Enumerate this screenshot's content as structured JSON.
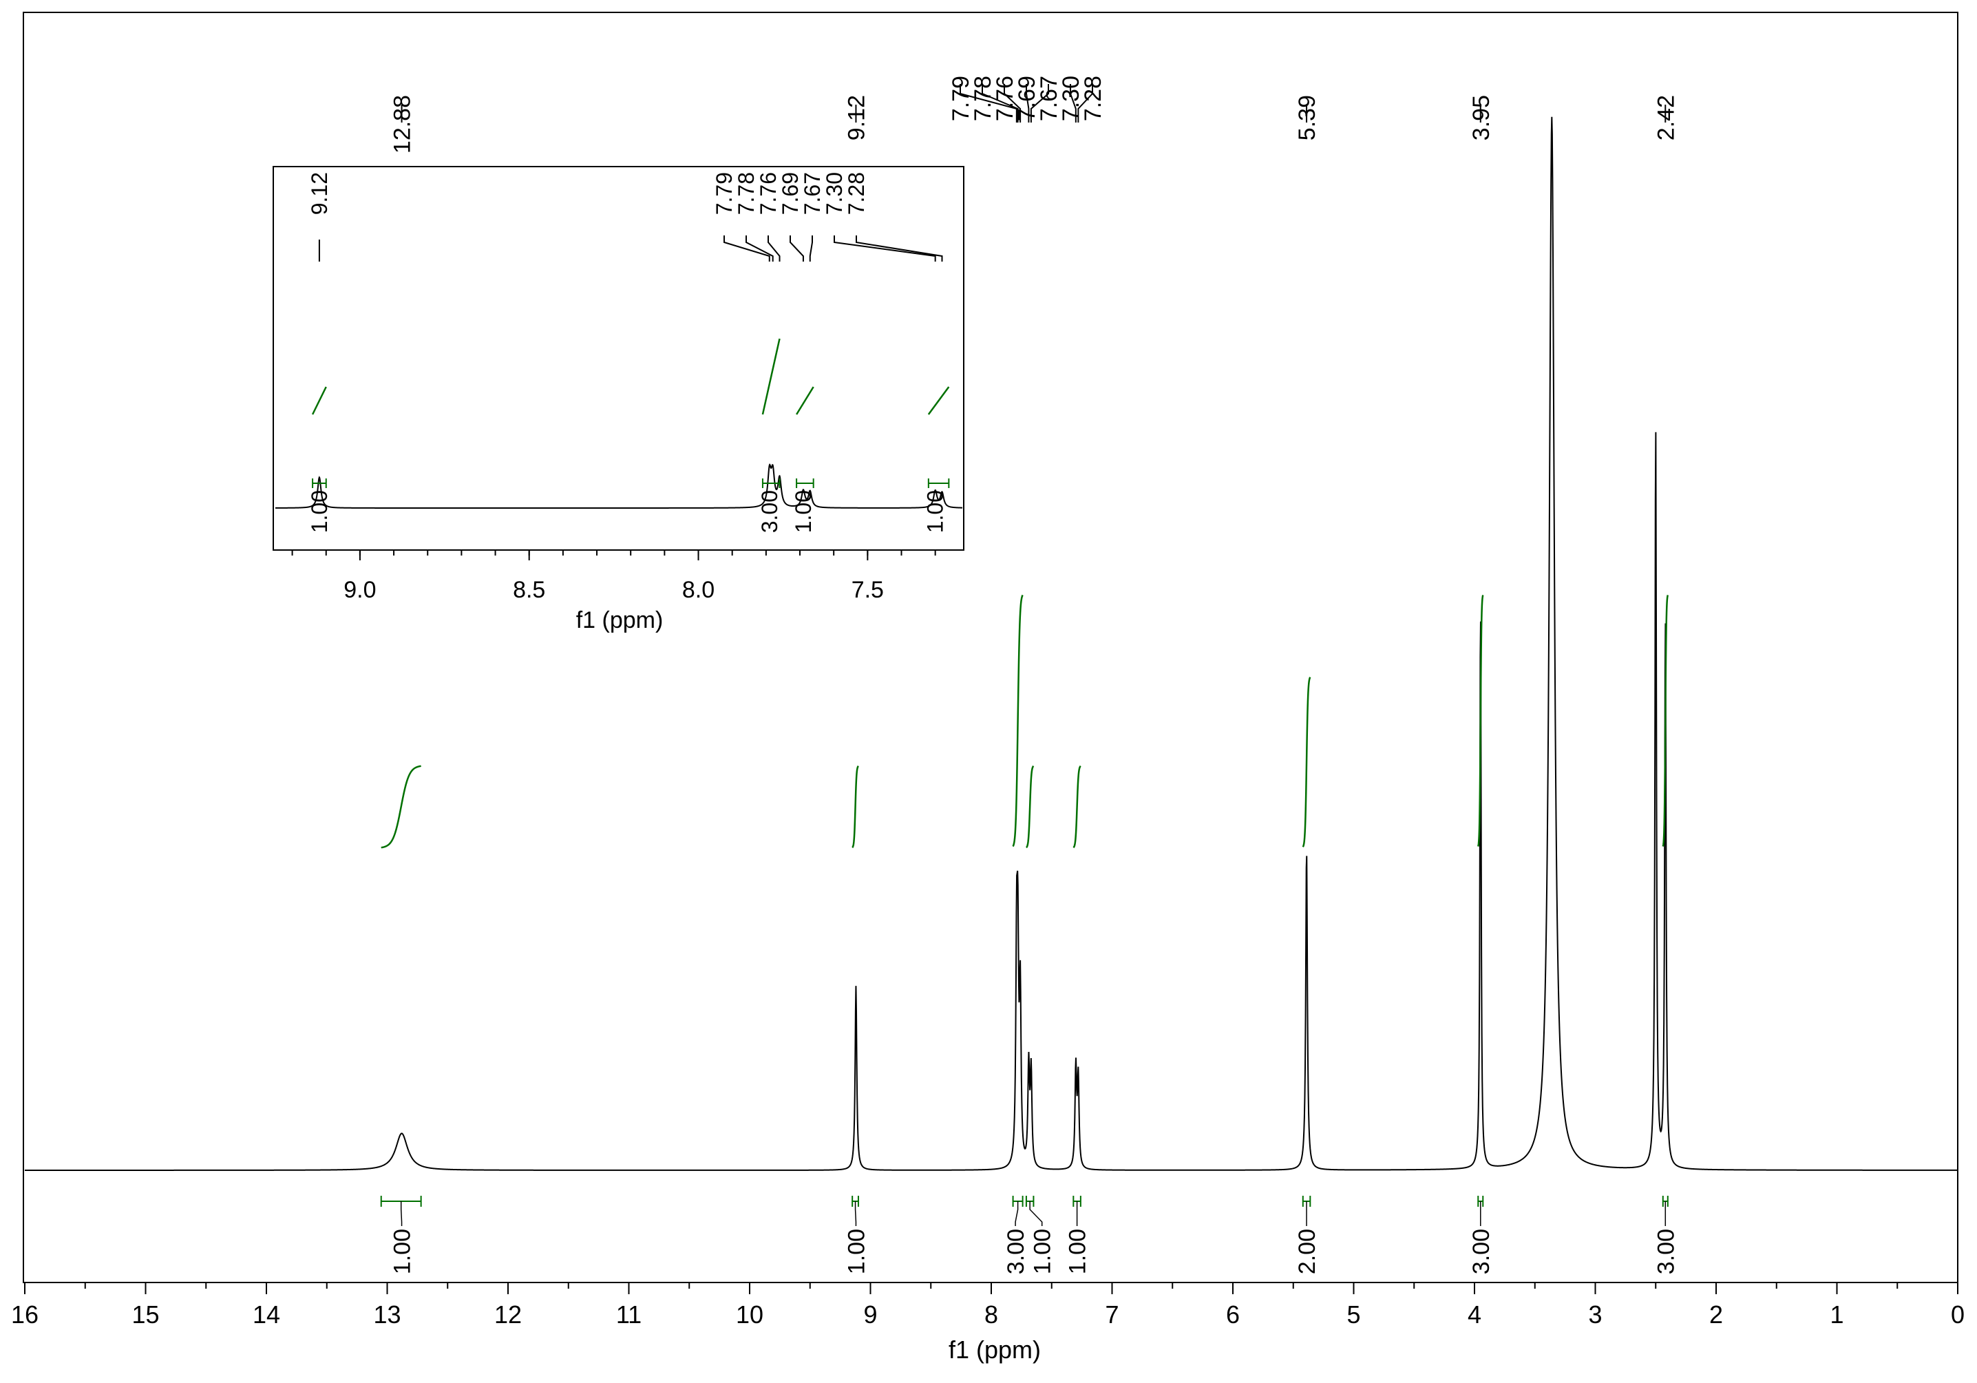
{
  "chart_data": {
    "type": "line",
    "title": "",
    "xlabel": "f1 (ppm)",
    "ylabel": "",
    "xlim": [
      16,
      0
    ],
    "x_ticks": [
      "16",
      "15",
      "14",
      "13",
      "12",
      "11",
      "10",
      "9",
      "8",
      "7",
      "6",
      "5",
      "4",
      "3",
      "2",
      "1",
      "0"
    ],
    "peak_labels": [
      {
        "text": "12.88",
        "ppm": 12.88
      },
      {
        "text": "9.12",
        "ppm": 9.12
      },
      {
        "text": "7.79",
        "ppm": 7.79
      },
      {
        "text": "7.78",
        "ppm": 7.78
      },
      {
        "text": "7.76",
        "ppm": 7.76
      },
      {
        "text": "7.69",
        "ppm": 7.69
      },
      {
        "text": "7.67",
        "ppm": 7.67
      },
      {
        "text": "7.30",
        "ppm": 7.3
      },
      {
        "text": "7.28",
        "ppm": 7.28
      },
      {
        "text": "5.39",
        "ppm": 5.39
      },
      {
        "text": "3.95",
        "ppm": 3.95
      },
      {
        "text": "2.42",
        "ppm": 2.42
      }
    ],
    "integrals": [
      {
        "from": 13.05,
        "to": 12.72,
        "value": "1.00",
        "label_ppm": 12.88
      },
      {
        "from": 9.15,
        "to": 9.1,
        "value": "1.00",
        "label_ppm": 9.12
      },
      {
        "from": 7.82,
        "to": 7.74,
        "value": "3.00",
        "label_ppm": 7.8
      },
      {
        "from": 7.71,
        "to": 7.65,
        "value": "1.00",
        "label_ppm": 7.58
      },
      {
        "from": 7.32,
        "to": 7.26,
        "value": "1.00",
        "label_ppm": 7.29
      },
      {
        "from": 5.42,
        "to": 5.36,
        "value": "2.00",
        "label_ppm": 5.39
      },
      {
        "from": 3.97,
        "to": 3.93,
        "value": "3.00",
        "label_ppm": 3.95
      },
      {
        "from": 2.44,
        "to": 2.4,
        "value": "3.00",
        "label_ppm": 2.42
      }
    ],
    "spectrum_peaks": [
      {
        "ppm": 12.88,
        "height": 0.035,
        "width": 0.06
      },
      {
        "ppm": 9.12,
        "height": 0.175,
        "width": 0.008
      },
      {
        "ppm": 7.79,
        "height": 0.19,
        "width": 0.008
      },
      {
        "ppm": 7.78,
        "height": 0.18,
        "width": 0.008
      },
      {
        "ppm": 7.76,
        "height": 0.16,
        "width": 0.008
      },
      {
        "ppm": 7.69,
        "height": 0.095,
        "width": 0.008
      },
      {
        "ppm": 7.67,
        "height": 0.09,
        "width": 0.008
      },
      {
        "ppm": 7.3,
        "height": 0.095,
        "width": 0.008
      },
      {
        "ppm": 7.28,
        "height": 0.085,
        "width": 0.008
      },
      {
        "ppm": 5.39,
        "height": 0.305,
        "width": 0.008
      },
      {
        "ppm": 3.95,
        "height": 0.54,
        "width": 0.006
      },
      {
        "ppm": 3.36,
        "height": 1.0,
        "width": 0.025
      },
      {
        "ppm": 2.5,
        "height": 0.705,
        "width": 0.007
      },
      {
        "ppm": 2.42,
        "height": 0.52,
        "width": 0.007
      }
    ],
    "inset": {
      "xlabel": "f1 (ppm)",
      "xlim": [
        9.25,
        7.22
      ],
      "x_ticks": [
        "9.0",
        "8.5",
        "8.0",
        "7.5"
      ],
      "peak_labels": [
        {
          "text": "9.12",
          "ppm": 9.12
        },
        {
          "text": "7.79",
          "ppm": 7.79
        },
        {
          "text": "7.78",
          "ppm": 7.78
        },
        {
          "text": "7.76",
          "ppm": 7.76
        },
        {
          "text": "7.69",
          "ppm": 7.69
        },
        {
          "text": "7.67",
          "ppm": 7.67
        },
        {
          "text": "7.30",
          "ppm": 7.3
        },
        {
          "text": "7.28",
          "ppm": 7.28
        }
      ],
      "integrals": [
        {
          "from": 9.14,
          "to": 9.1,
          "value": "1.00",
          "label_ppm": 9.12
        },
        {
          "from": 7.81,
          "to": 7.76,
          "value": "3.00",
          "label_ppm": 7.79
        },
        {
          "from": 7.71,
          "to": 7.66,
          "value": "1.00",
          "label_ppm": 7.69
        },
        {
          "from": 7.32,
          "to": 7.26,
          "value": "1.00",
          "label_ppm": 7.3
        }
      ]
    },
    "colors": {
      "spectrum": "#000000",
      "integral": "#007000"
    }
  }
}
